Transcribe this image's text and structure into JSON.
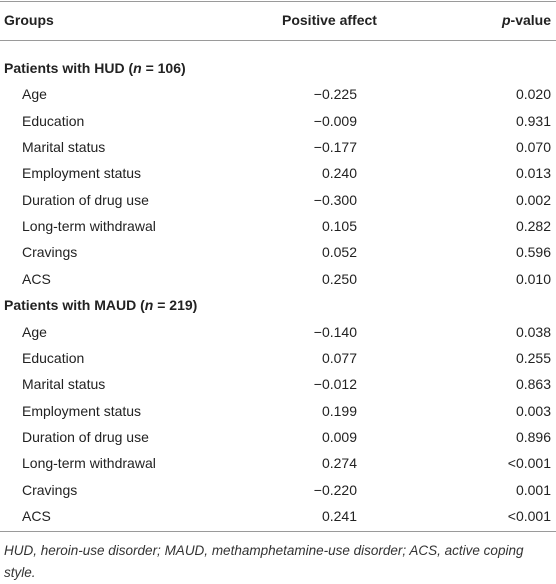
{
  "header": {
    "groups": "Groups",
    "positive_affect": "Positive affect",
    "p_value": [
      "p",
      "-value"
    ]
  },
  "groups": [
    {
      "label": [
        "Patients with HUD (",
        "n",
        " = 106)"
      ],
      "rows": [
        [
          "Age",
          "−0.225",
          "0.020"
        ],
        [
          "Education",
          "−0.009",
          "0.931"
        ],
        [
          "Marital status",
          "−0.177",
          "0.070"
        ],
        [
          "Employment status",
          "0.240",
          "0.013"
        ],
        [
          "Duration of drug use",
          "−0.300",
          "0.002"
        ],
        [
          "Long-term withdrawal",
          "0.105",
          "0.282"
        ],
        [
          "Cravings",
          "0.052",
          "0.596"
        ],
        [
          "ACS",
          "0.250",
          "0.010"
        ]
      ]
    },
    {
      "label": [
        "Patients with MAUD (",
        "n",
        " = 219)"
      ],
      "rows": [
        [
          "Age",
          "−0.140",
          "0.038"
        ],
        [
          "Education",
          "0.077",
          "0.255"
        ],
        [
          "Marital status",
          "−0.012",
          "0.863"
        ],
        [
          "Employment status",
          "0.199",
          "0.003"
        ],
        [
          "Duration of drug use",
          "0.009",
          "0.896"
        ],
        [
          "Long-term withdrawal",
          "0.274",
          "<0.001"
        ],
        [
          "Cravings",
          "−0.220",
          "0.001"
        ],
        [
          "ACS",
          "0.241",
          "<0.001"
        ]
      ]
    }
  ],
  "footnote": "HUD, heroin-use disorder; MAUD, methamphetamine-use disorder; ACS, active coping style."
}
